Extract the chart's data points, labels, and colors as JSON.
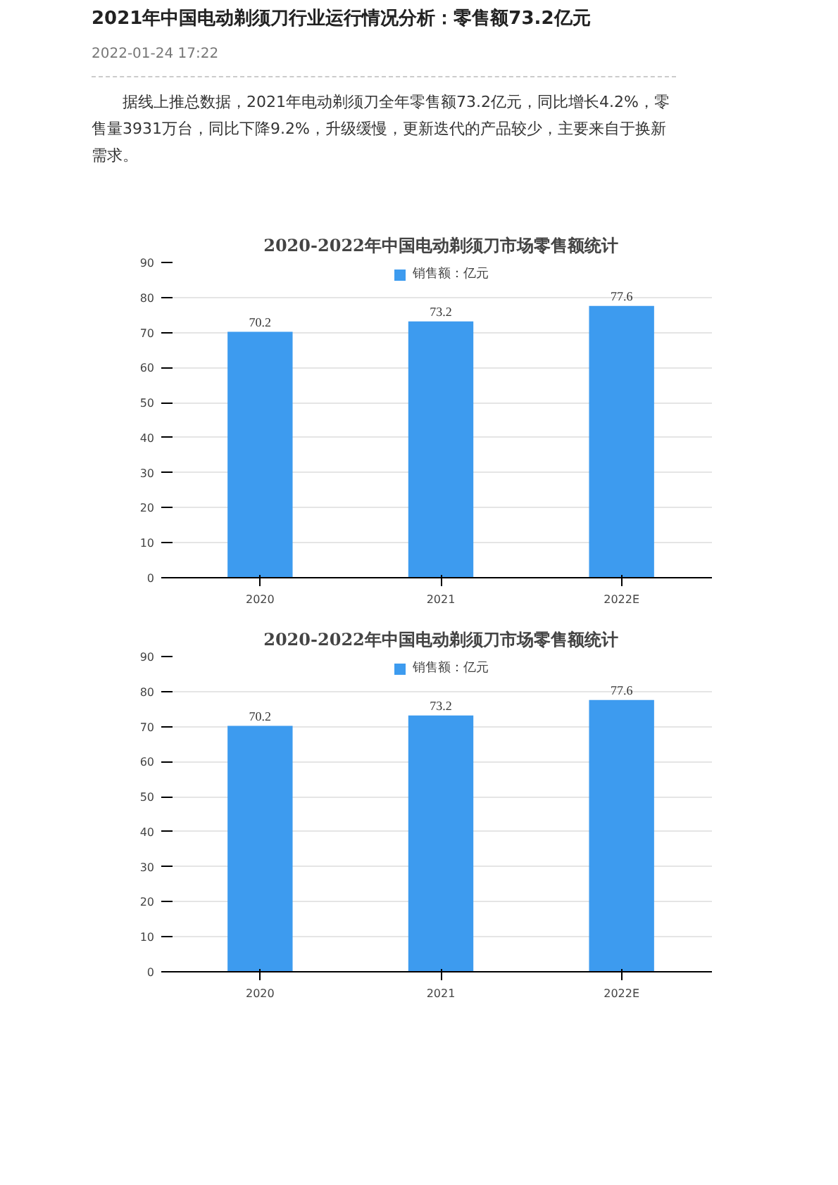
{
  "chart_data": [
    {
      "type": "bar",
      "title": "2020-2022年中国电动剃须刀市场零售额统计",
      "categories": [
        "2020",
        "2021",
        "2022E"
      ],
      "series": [
        {
          "name": "销售额：亿元",
          "color": "#3d9bef",
          "values": [
            70.2,
            73.2,
            77.6
          ]
        }
      ],
      "ylim": [
        0,
        90
      ],
      "yticks": [
        0,
        10,
        20,
        30,
        40,
        50,
        60,
        70,
        80,
        90
      ],
      "grid": "y",
      "legend": "top",
      "data_labels": true,
      "annotations": [
        "2021年中国电动剃须刀行业运行情况分析：零售额73.2亿元",
        "2022-01-24 17:22",
        "据线上推总数据，2021年电动剃须刀全年零售额73.2亿元，同比增长4.2%，零售量3931万台，同比下降9.2%，升级缓慢，更新迭代的产品较少，主要来自于换新需求。"
      ]
    },
    {
      "type": "bar",
      "title": "2020-2022年中国电动剃须刀市场零售额统计",
      "categories": [
        "2020",
        "2021",
        "2022E"
      ],
      "series": [
        {
          "name": "销售额：亿元",
          "color": "#3d9bef",
          "values": [
            70.2,
            73.2,
            77.6
          ]
        }
      ],
      "ylim": [
        0,
        90
      ],
      "yticks": [
        0,
        10,
        20,
        30,
        40,
        50,
        60,
        70,
        80,
        90
      ],
      "grid": "y",
      "legend": "top",
      "data_labels": true
    }
  ]
}
